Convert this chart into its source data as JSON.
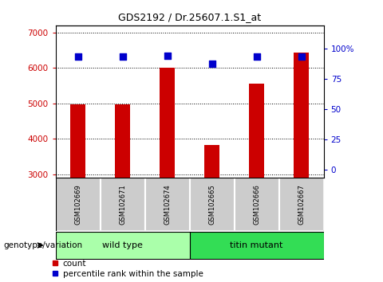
{
  "title": "GDS2192 / Dr.25607.1.S1_at",
  "samples": [
    "GSM102669",
    "GSM102671",
    "GSM102674",
    "GSM102665",
    "GSM102666",
    "GSM102667"
  ],
  "counts": [
    4970,
    4960,
    6010,
    3820,
    5560,
    6430
  ],
  "percentile_ranks": [
    93,
    93,
    94,
    87,
    93,
    93
  ],
  "ylim_left": [
    2900,
    7200
  ],
  "ylim_right": [
    -6.25,
    118.75
  ],
  "yticks_left": [
    3000,
    4000,
    5000,
    6000,
    7000
  ],
  "yticks_right": [
    0,
    25,
    50,
    75,
    100
  ],
  "ytick_labels_right": [
    "0",
    "25",
    "50",
    "75",
    "100%"
  ],
  "bar_color": "#cc0000",
  "dot_color": "#0000cc",
  "bar_bottom": 2900,
  "groups": [
    {
      "label": "wild type",
      "indices": [
        0,
        1,
        2
      ],
      "color": "#aaffaa"
    },
    {
      "label": "titin mutant",
      "indices": [
        3,
        4,
        5
      ],
      "color": "#33dd55"
    }
  ],
  "group_label": "genotype/variation",
  "legend_count_label": "count",
  "legend_pct_label": "percentile rank within the sample",
  "tick_color_left": "#cc0000",
  "tick_color_right": "#0000cc",
  "xticklabel_bg": "#cccccc"
}
